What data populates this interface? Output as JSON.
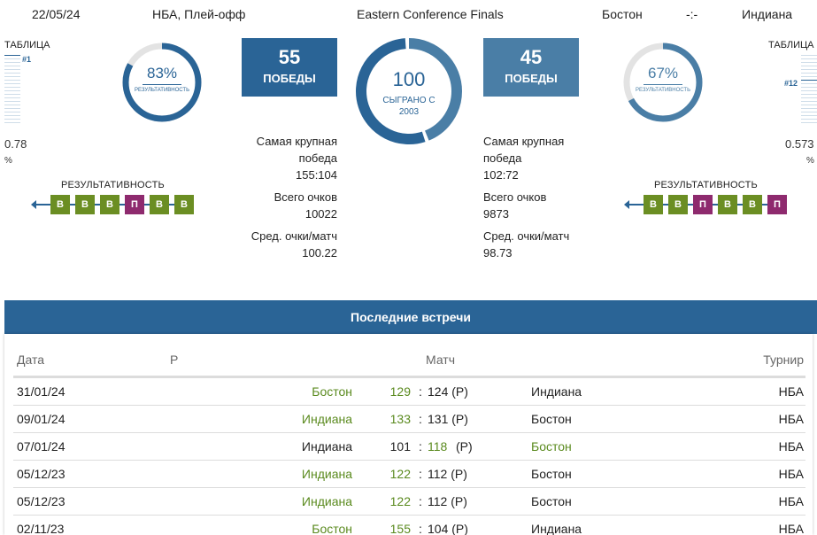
{
  "header": {
    "date": "22/05/24",
    "league": "НБА, Плей-офф",
    "stage": "Eastern Conference Finals",
    "home_team": "Бостон",
    "score": "-:-",
    "away_team": "Индиана"
  },
  "left": {
    "table_label": "ТАБЛИЦА",
    "rank": "#1",
    "pct_value": "0.78",
    "pct_unit": "%",
    "efficiency_pct": "83%",
    "efficiency_fraction": 0.83,
    "efficiency_label": "РЕЗУЛЬТАТИВНОСТЬ",
    "wins_number": "55",
    "wins_label": "ПОБЕДЫ",
    "form_title": "РЕЗУЛЬТАТИВНОСТЬ",
    "form": [
      "В",
      "В",
      "В",
      "П",
      "В",
      "В"
    ],
    "stats": [
      {
        "label": "Самая крупная победа",
        "value": "155:104"
      },
      {
        "label": "Всего очков",
        "value": "10022"
      },
      {
        "label": "Сред. очки/матч",
        "value": "100.22"
      }
    ]
  },
  "center": {
    "played_number": "100",
    "played_label": "СЫГРАНО С",
    "played_since": "2003",
    "home_fraction": 0.55
  },
  "right": {
    "table_label": "ТАБЛИЦА",
    "rank": "#12",
    "pct_value": "0.573",
    "pct_unit": "%",
    "efficiency_pct": "67%",
    "efficiency_fraction": 0.67,
    "efficiency_label": "РЕЗУЛЬТАТИВНОСТЬ",
    "wins_number": "45",
    "wins_label": "ПОБЕДЫ",
    "form_title": "РЕЗУЛЬТАТИВНОСТЬ",
    "form": [
      "В",
      "В",
      "П",
      "В",
      "В",
      "П"
    ],
    "stats": [
      {
        "label": "Самая крупная победа",
        "value": "102:72"
      },
      {
        "label": "Всего очков",
        "value": "9873"
      },
      {
        "label": "Сред. очки/матч",
        "value": "98.73"
      }
    ]
  },
  "meetings": {
    "title": "Последние встречи",
    "columns": {
      "date": "Дата",
      "r": "Р",
      "match": "Матч",
      "tournament": "Турнир"
    },
    "separator": ":",
    "rows": [
      {
        "date": "31/01/24",
        "home": "Бостон",
        "home_score": "129",
        "away_score": "124 (Р)",
        "away": "Индиана",
        "tournament": "НБА",
        "winner": "home"
      },
      {
        "date": "09/01/24",
        "home": "Индиана",
        "home_score": "133",
        "away_score": "131 (Р)",
        "away": "Бостон",
        "tournament": "НБА",
        "winner": "home"
      },
      {
        "date": "07/01/24",
        "home": "Индиана",
        "home_score": "101",
        "away_score": "118",
        "away_suffix": "(Р)",
        "away": "Бостон",
        "tournament": "НБА",
        "winner": "away"
      },
      {
        "date": "05/12/23",
        "home": "Индиана",
        "home_score": "122",
        "away_score": "112 (Р)",
        "away": "Бостон",
        "tournament": "НБА",
        "winner": "home"
      },
      {
        "date": "05/12/23",
        "home": "Индиана",
        "home_score": "122",
        "away_score": "112 (Р)",
        "away": "Бостон",
        "tournament": "НБА",
        "winner": "home"
      },
      {
        "date": "02/11/23",
        "home": "Бостон",
        "home_score": "155",
        "away_score": "104 (Р)",
        "away": "Индиана",
        "tournament": "НБА",
        "winner": "home"
      }
    ]
  },
  "colors": {
    "primary": "#2a6496",
    "secondary": "#4a7ea6",
    "win": "#6b8e23",
    "loss": "#8e2a6e",
    "winner_text": "#5a8a1e"
  }
}
